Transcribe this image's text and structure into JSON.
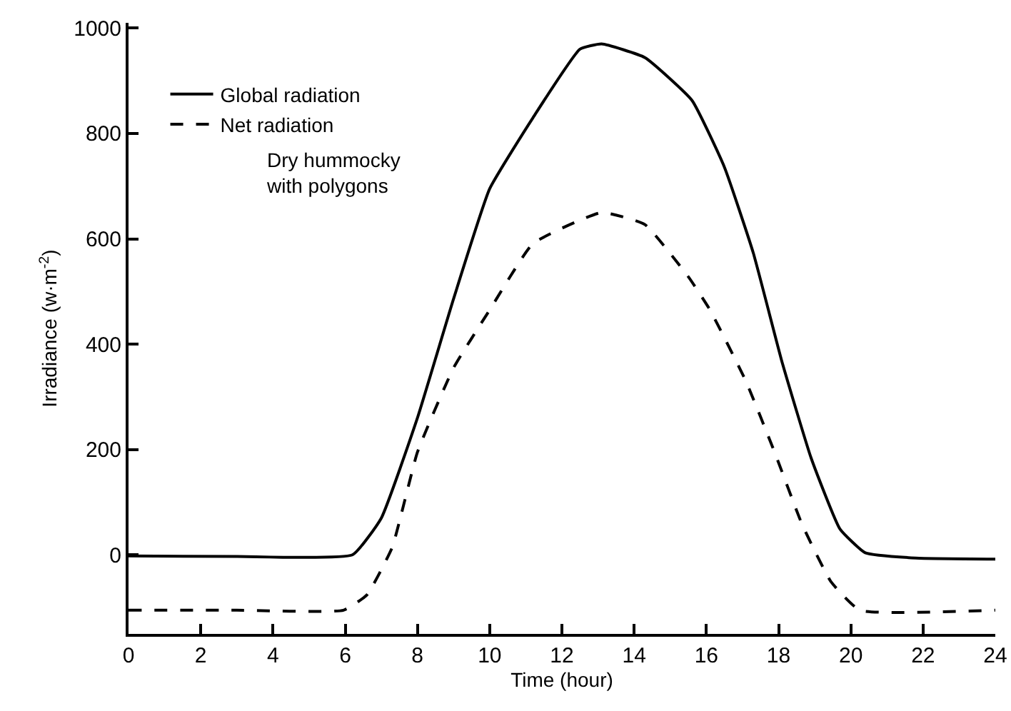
{
  "chart_data": {
    "type": "line",
    "xlabel": "Time (hour)",
    "ylabel": "Irradiance (w·m$^{-2}$)",
    "xlim": [
      0,
      24
    ],
    "xticks": [
      0,
      2,
      4,
      6,
      8,
      10,
      12,
      14,
      16,
      18,
      20,
      22,
      24
    ],
    "ylim": [
      -150,
      1010
    ],
    "yticks": [
      0,
      200,
      400,
      600,
      800,
      1000
    ],
    "grid": false,
    "legend": "top left",
    "marker": "none",
    "annotations": [
      "Dry hummocky with polygons"
    ],
    "series": [
      {
        "name": "Global radiation",
        "color": "#000000",
        "line_style": "solid",
        "x": [
          0,
          3,
          6.2,
          7.0,
          8.0,
          9.0,
          10.0,
          11.2,
          12.5,
          13.1,
          14.3,
          15.6,
          16.5,
          17.3,
          18.1,
          18.9,
          19.7,
          20.4,
          21.8,
          24
        ],
        "values": [
          -2,
          -3,
          0,
          70,
          260,
          486,
          695,
          830,
          960,
          970,
          944,
          863,
          736,
          573,
          365,
          184,
          49,
          4,
          -6,
          -8
        ]
      },
      {
        "name": "Net radiation",
        "color": "#000000",
        "line_style": "dashed",
        "x": [
          0,
          3,
          5.95,
          6.6,
          7.3,
          8.0,
          9.0,
          10.0,
          11.2,
          13.1,
          14.3,
          15.5,
          16.1,
          17.1,
          17.9,
          18.65,
          19.45,
          20.25,
          24
        ],
        "values": [
          -105,
          -105,
          -105,
          -76,
          14,
          195,
          355,
          465,
          591,
          650,
          627,
          528,
          465,
          329,
          193,
          58,
          -51,
          -105,
          -105
        ]
      }
    ]
  }
}
